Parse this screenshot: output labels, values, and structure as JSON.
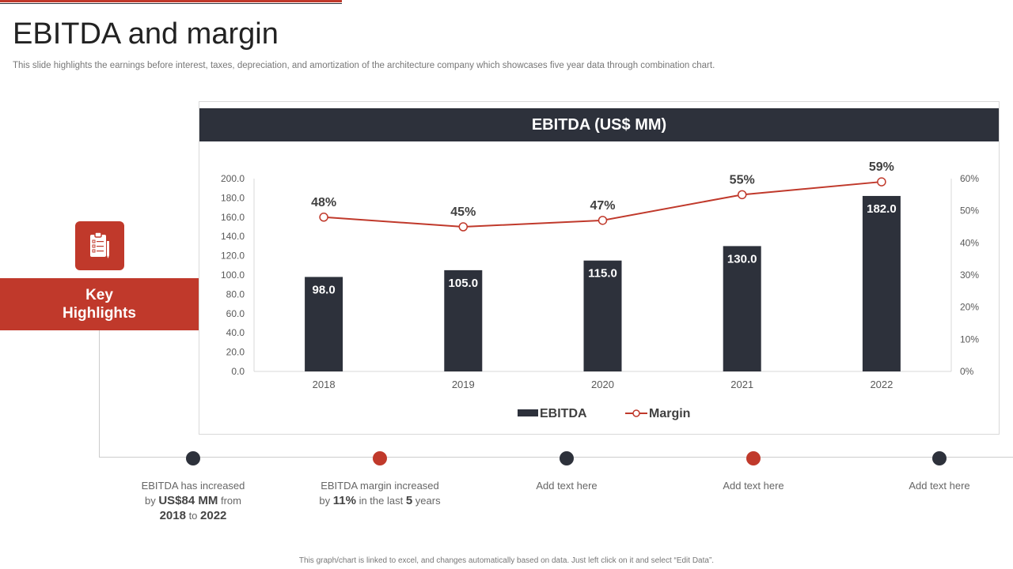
{
  "page": {
    "title": "EBITDA and margin",
    "subtitle": "This slide highlights the earnings before interest, taxes, depreciation, and amortization of the architecture company which showcases five year data through combination chart.",
    "footer": "This graph/chart is linked to excel, and changes automatically based on data. Just left click on it and select “Edit Data”."
  },
  "key_highlights": {
    "line1": "Key",
    "line2": "Highlights",
    "icon": "clipboard-checklist-icon"
  },
  "highlights": [
    {
      "a": "EBITDA  has increased",
      "b1": "by ",
      "b2": "US$84 MM",
      "b3": " from",
      "c1": "2018",
      "c2": " to ",
      "c3": "2022",
      "dot": "dark"
    },
    {
      "a": "EBITDA  margin increased",
      "b1": "by ",
      "b2": "11%",
      "b3": " in the last ",
      "b4": "5",
      "b5": " years",
      "dot": "red"
    },
    {
      "a": "Add text here",
      "dot": "dark"
    },
    {
      "a": "Add text here",
      "dot": "red"
    },
    {
      "a": "Add text here",
      "dot": "dark"
    }
  ],
  "colors": {
    "accent": "#c0392b",
    "dark": "#2d313b"
  },
  "chart_data": {
    "type": "bar",
    "title": "EBITDA (US$ MM)",
    "categories": [
      "2018",
      "2019",
      "2020",
      "2021",
      "2022"
    ],
    "series": [
      {
        "name": "EBITDA",
        "type": "bar",
        "axis": "left",
        "values": [
          98.0,
          105.0,
          115.0,
          130.0,
          182.0
        ],
        "labels": [
          "98.0",
          "105.0",
          "115.0",
          "130.0",
          "182.0"
        ],
        "color": "#2d313b"
      },
      {
        "name": "Margin",
        "type": "line",
        "axis": "right",
        "values": [
          48,
          45,
          47,
          55,
          59
        ],
        "labels": [
          "48%",
          "45%",
          "47%",
          "55%",
          "59%"
        ],
        "color": "#c0392b"
      }
    ],
    "ylim": [
      0,
      200
    ],
    "y_ticks": [
      "0.0",
      "20.0",
      "40.0",
      "60.0",
      "80.0",
      "100.0",
      "120.0",
      "140.0",
      "160.0",
      "180.0",
      "200.0"
    ],
    "y2lim": [
      0,
      60
    ],
    "y2_ticks": [
      "0%",
      "10%",
      "20%",
      "30%",
      "40%",
      "50%",
      "60%"
    ],
    "legend": "bottom",
    "grid": false
  }
}
